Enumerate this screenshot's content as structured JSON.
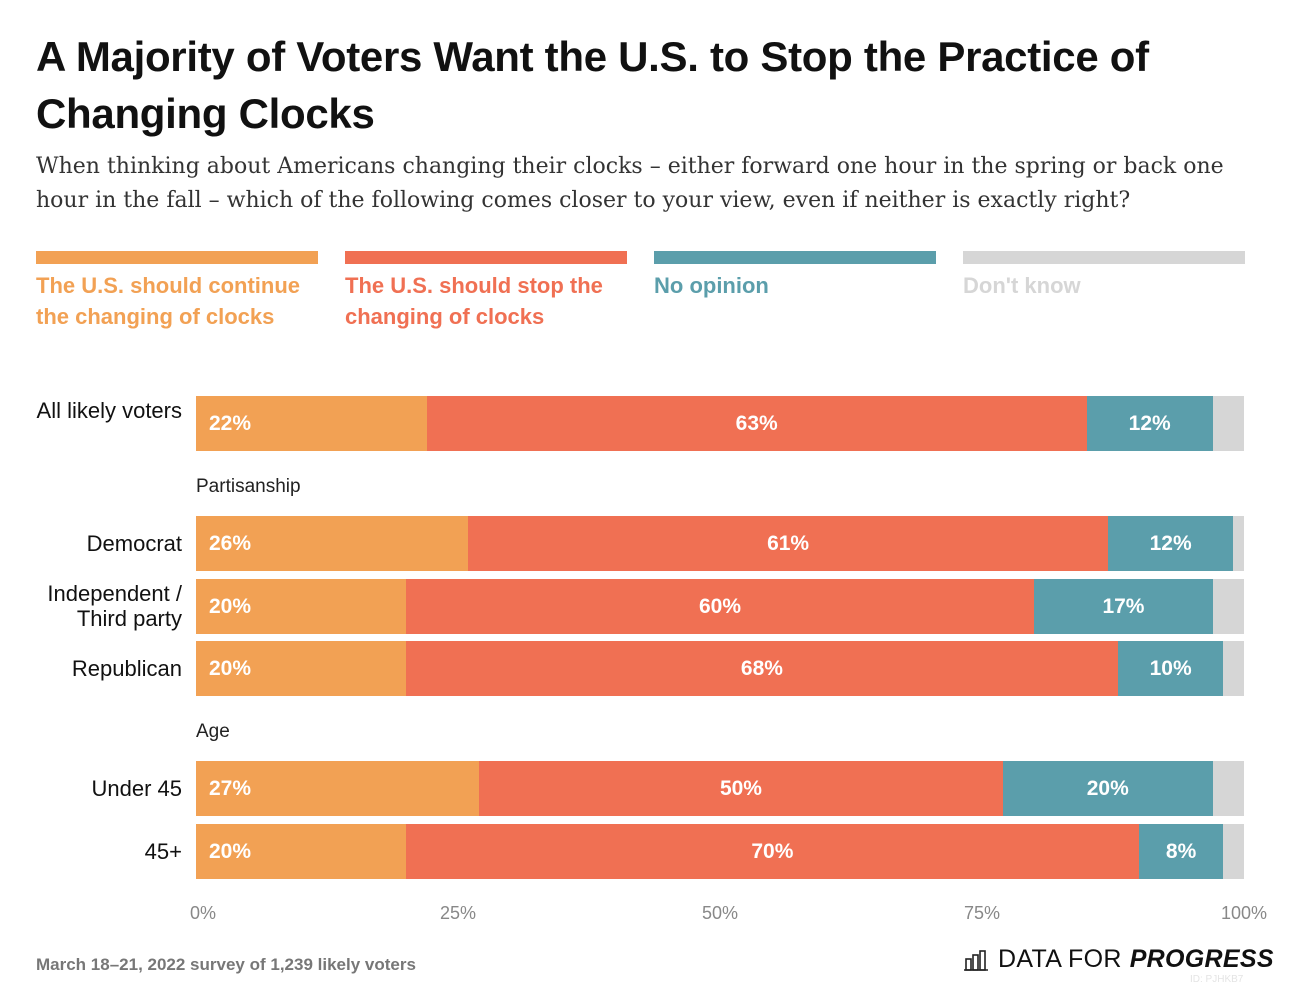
{
  "chart_data": {
    "type": "bar",
    "orientation": "horizontal",
    "stacked": true,
    "title": "A Majority of Voters Want the U.S. to Stop the Practice of Changing Clocks",
    "subtitle": "When thinking about Americans changing their clocks – either forward one hour in the spring or back one hour in the fall – which of the following comes closer to your view, even if neither is exactly right?",
    "xlim": [
      0,
      100
    ],
    "xticks": [
      "0%",
      "25%",
      "50%",
      "75%",
      "100%"
    ],
    "legend_placement": "top",
    "series": [
      {
        "name": "The U.S. should continue the changing of clocks",
        "color": "#F2A154"
      },
      {
        "name": "The U.S. should stop the changing of clocks",
        "color": "#F07053"
      },
      {
        "name": "No opinion",
        "color": "#5B9EAB"
      },
      {
        "name": "Don't know",
        "color": "#D6D6D6"
      }
    ],
    "groups": [
      {
        "label": "",
        "rows": [
          {
            "label": "All likely voters",
            "values": [
              22,
              63,
              12,
              3
            ]
          }
        ]
      },
      {
        "label": "Partisanship",
        "rows": [
          {
            "label": "Democrat",
            "values": [
              26,
              61,
              12,
              1
            ]
          },
          {
            "label": "Independent / Third party",
            "values": [
              20,
              60,
              17,
              3
            ]
          },
          {
            "label": "Republican",
            "values": [
              20,
              68,
              10,
              2
            ]
          }
        ]
      },
      {
        "label": "Age",
        "rows": [
          {
            "label": "Under 45",
            "values": [
              27,
              50,
              20,
              3
            ]
          },
          {
            "label": "45+",
            "values": [
              20,
              70,
              8,
              2
            ]
          }
        ]
      }
    ]
  },
  "footer": {
    "source": "March 18–21, 2022 survey of 1,239 likely voters",
    "logo_light": "DATA FOR",
    "logo_bold": "PROGRESS",
    "id": "ID: PJHKB7"
  }
}
